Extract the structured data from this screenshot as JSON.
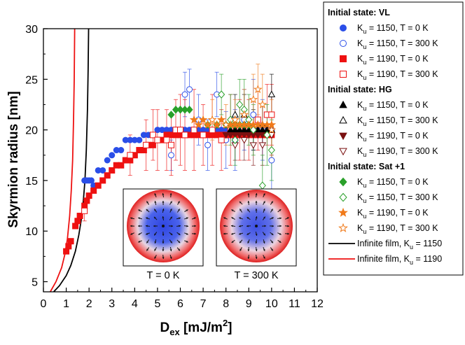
{
  "chart_data": {
    "type": "scatter",
    "xlabel": "D",
    "xlabel_sub": "ex",
    "xlabel_unit": " [mJ/m",
    "xlabel_sup": "2",
    "xlabel_close": "]",
    "ylabel": "Skyrmion radius [nm]",
    "xlim": [
      0,
      12
    ],
    "ylim": [
      4,
      30
    ],
    "xticks": [
      0,
      1,
      2,
      3,
      4,
      5,
      6,
      7,
      8,
      9,
      10,
      11,
      12
    ],
    "yticks": [
      5,
      10,
      15,
      20,
      25,
      30
    ],
    "legend_groups": [
      {
        "heading": "Initial state: VL",
        "entries": [
          0,
          1,
          2,
          3
        ]
      },
      {
        "heading": "Initial state: HG",
        "entries": [
          4,
          5,
          6,
          7
        ]
      },
      {
        "heading": "Initial state: Sat +1",
        "entries": [
          8,
          9,
          10,
          11
        ]
      }
    ],
    "series": [
      {
        "name": "K_u = 1150, T = 0 K",
        "label_main": "K",
        "label_sub": "u",
        "label_rest": " = 1150, T = 0 K",
        "marker": "circle",
        "filled": true,
        "color": "#2a4ee8",
        "x": [
          1.8,
          1.9,
          2.0,
          2.1,
          2.2,
          2.4,
          2.6,
          2.8,
          3.0,
          3.2,
          3.4,
          3.6,
          3.8,
          4.0,
          4.2,
          4.4,
          4.6,
          4.8,
          5.0,
          5.2,
          5.4,
          5.6,
          5.8,
          6.0,
          6.2,
          6.4,
          6.6,
          6.8,
          7.0,
          7.2,
          7.4,
          7.6,
          7.8,
          8.0,
          8.2,
          8.4,
          8.6,
          8.8,
          9.0,
          9.2,
          9.4,
          9.6,
          9.8,
          10.0
        ],
        "y": [
          15,
          15,
          15,
          15,
          14.5,
          16,
          16,
          17,
          17.5,
          18,
          18,
          19,
          19,
          19,
          19,
          19.5,
          19.5,
          19.5,
          20,
          20,
          20,
          20,
          20,
          20,
          20,
          20,
          20,
          20,
          20,
          20,
          20,
          20,
          20,
          20,
          20,
          20,
          20,
          20,
          20,
          20,
          20,
          20,
          20,
          20
        ]
      },
      {
        "name": "K_u = 1150, T = 300 K",
        "label_main": "K",
        "label_sub": "u",
        "label_rest": " = 1150, T = 300 K",
        "marker": "circle",
        "filled": false,
        "color": "#2a4ee8",
        "x": [
          5.6,
          6.2,
          6.4,
          6.8,
          7.2,
          7.6,
          8.0,
          8.4,
          8.8,
          9.2,
          9.6,
          10.0
        ],
        "y": [
          17.5,
          23.5,
          24,
          21,
          18.5,
          23.5,
          19,
          19,
          21,
          21.5,
          20,
          17
        ],
        "err": [
          1.5,
          2.2,
          2.0,
          2.5,
          2.5,
          2.2,
          2.8,
          3.0,
          3.0,
          3.5,
          3.0,
          3.0
        ]
      },
      {
        "name": "K_u = 1190, T = 0 K",
        "label_main": "K",
        "label_sub": "u",
        "label_rest": " = 1190, T = 0 K",
        "marker": "square",
        "filled": true,
        "color": "#ee1111",
        "x": [
          1.0,
          1.1,
          1.2,
          1.4,
          1.5,
          1.6,
          1.8,
          1.9,
          2.0,
          2.2,
          2.4,
          2.6,
          2.8,
          3.0,
          3.2,
          3.4,
          3.6,
          3.8,
          4.0,
          4.2,
          4.4,
          4.6,
          4.8,
          5.0,
          5.2,
          5.4,
          5.6,
          5.8,
          6.0,
          6.2,
          6.4,
          6.6,
          6.8,
          7.0,
          7.2,
          7.4,
          7.6,
          7.8,
          8.0,
          8.2,
          8.4,
          8.6,
          8.8,
          9.0,
          9.2,
          9.4,
          9.6,
          9.8,
          10.0
        ],
        "y": [
          8,
          8.5,
          9,
          10.5,
          11,
          11.5,
          12.5,
          13,
          13.5,
          14,
          14.5,
          15,
          15.5,
          16,
          16.5,
          16.5,
          17,
          17,
          17.5,
          18,
          18,
          18.5,
          18.5,
          19,
          19,
          19.5,
          19.5,
          19.5,
          19.5,
          19.5,
          19.5,
          19.5,
          19.5,
          19.5,
          19.5,
          19.5,
          19.5,
          19.5,
          19.5,
          19.5,
          19.5,
          19.5,
          19.5,
          19.5,
          19.5,
          19.5,
          19.5,
          19.5,
          19.5
        ]
      },
      {
        "name": "K_u = 1190, T = 300 K",
        "label_main": "K",
        "label_sub": "u",
        "label_rest": " = 1190, T = 300 K",
        "marker": "square",
        "filled": false,
        "color": "#ee1111",
        "x": [
          1.8,
          3.8,
          4.5,
          4.8,
          5.0,
          5.4,
          5.6,
          5.8,
          6.0,
          6.2,
          6.6,
          7.0,
          7.4,
          7.8,
          8.2,
          8.6,
          9.0,
          9.4,
          9.8,
          10.0
        ],
        "y": [
          12,
          17.5,
          18.5,
          19.5,
          19,
          19,
          18.5,
          20,
          20,
          19.5,
          20,
          19.5,
          20,
          19,
          20,
          20,
          20,
          21,
          21.5,
          21.5
        ],
        "err": [
          1.0,
          2.0,
          2.5,
          2.5,
          3.0,
          3.0,
          3.0,
          3.0,
          3.5,
          3.5,
          4.0,
          3.0,
          3.5,
          3.0,
          3.5,
          3.0,
          3.0,
          3.0,
          3.0,
          3.0
        ]
      },
      {
        "name": "K_u = 1150, T = 0 K",
        "label_main": "K",
        "label_sub": "u",
        "label_rest": " = 1150, T = 0 K",
        "marker": "triangle-up",
        "filled": true,
        "color": "#000000",
        "x": [
          8.2,
          8.4,
          8.6,
          8.8,
          9.0,
          9.2,
          9.4,
          9.6,
          9.8,
          10.0
        ],
        "y": [
          20,
          20,
          20,
          20,
          20,
          20,
          20,
          20,
          20,
          20
        ]
      },
      {
        "name": "K_u = 1150, T = 300 K",
        "label_main": "K",
        "label_sub": "u",
        "label_rest": " = 1150, T = 300 K",
        "marker": "triangle-up",
        "filled": false,
        "color": "#000000",
        "x": [
          8.4,
          8.8,
          9.2,
          9.6,
          10.0
        ],
        "y": [
          21.5,
          21.5,
          20,
          20.5,
          23.5
        ],
        "err": [
          2.0,
          2.0,
          2.0,
          2.0,
          2.0
        ]
      },
      {
        "name": "K_u = 1190, T = 0 K",
        "label_main": "K",
        "label_sub": "u",
        "label_rest": " = 1190, T = 0 K",
        "marker": "triangle-down",
        "filled": true,
        "color": "#7a1010",
        "x": [
          8.0,
          8.2,
          8.4,
          8.6,
          8.8,
          9.0,
          9.2,
          9.4,
          9.6,
          9.8,
          10.0
        ],
        "y": [
          19.5,
          19.5,
          19.5,
          19.5,
          19.5,
          19.5,
          19.5,
          19.5,
          19.5,
          19.5,
          19.5
        ]
      },
      {
        "name": "K_u = 1190, T = 300 K",
        "label_main": "K",
        "label_sub": "u",
        "label_rest": " = 1190, T = 300 K",
        "marker": "triangle-down",
        "filled": false,
        "color": "#7a1010",
        "x": [
          8.4,
          8.8,
          9.2,
          9.6,
          10.0
        ],
        "y": [
          18.5,
          19,
          18.5,
          18.5,
          19.5
        ],
        "err": [
          1.5,
          2.0,
          2.0,
          2.0,
          2.0
        ]
      },
      {
        "name": "K_u = 1150, T = 0 K",
        "label_main": "K",
        "label_sub": "u",
        "label_rest": " = 1150, T = 0 K",
        "marker": "diamond",
        "filled": true,
        "color": "#2aa02a",
        "x": [
          5.6,
          5.8,
          6.0,
          6.2,
          6.4,
          7.2,
          7.6,
          8.0,
          8.2,
          8.4,
          8.6,
          8.8,
          9.0
        ],
        "y": [
          21.5,
          22,
          22,
          22,
          22,
          20.5,
          20.5,
          20.5,
          20.5,
          20.5,
          20.5,
          20.5,
          20.5
        ]
      },
      {
        "name": "K_u = 1150, T = 300 K",
        "label_main": "K",
        "label_sub": "u",
        "label_rest": " = 1150, T = 300 K",
        "marker": "diamond",
        "filled": false,
        "color": "#2aa02a",
        "x": [
          7.8,
          8.2,
          8.4,
          8.6,
          8.8,
          9.0,
          9.2,
          9.6,
          9.8,
          10.0
        ],
        "y": [
          23.5,
          21,
          19,
          22.5,
          22,
          21,
          20,
          14.5,
          19.5,
          18
        ],
        "err": [
          2.0,
          2.5,
          2.5,
          2.5,
          3.0,
          2.5,
          2.5,
          3.0,
          3.0,
          3.0
        ]
      },
      {
        "name": "K_u = 1190, T = 0 K",
        "label_main": "K",
        "label_sub": "u",
        "label_rest": " = 1190, T = 0 K",
        "marker": "star",
        "filled": true,
        "color": "#f07a1a",
        "x": [
          6.6,
          6.8,
          7.0,
          7.2,
          7.4,
          7.6,
          7.8,
          8.0,
          8.2,
          8.4,
          8.6,
          8.8,
          9.0,
          9.2,
          9.4,
          9.6,
          9.8,
          10.0
        ],
        "y": [
          21,
          20.5,
          21,
          20.5,
          21,
          20.5,
          21,
          20.5,
          20.5,
          20.5,
          20.5,
          20.5,
          20.5,
          20.5,
          20.5,
          20.5,
          20.5,
          20.5
        ]
      },
      {
        "name": "K_u = 1190, T = 300 K",
        "label_main": "K",
        "label_sub": "u",
        "label_rest": " = 1190, T = 300 K",
        "marker": "star",
        "filled": false,
        "color": "#f07a1a",
        "x": [
          7.4,
          8.0,
          8.4,
          8.8,
          9.2,
          9.4,
          9.6,
          10.0
        ],
        "y": [
          21,
          20.5,
          21,
          21.5,
          23,
          24,
          22.5,
          20
        ],
        "err": [
          2.0,
          2.0,
          2.0,
          2.5,
          2.5,
          2.5,
          3.0,
          3.0
        ]
      }
    ],
    "lines": [
      {
        "name": "Infinite film, K_u = 1150",
        "label_main": "Infinite film, K",
        "label_sub": "u",
        "label_rest": " = 1150",
        "color": "#000000",
        "x": [
          0.45,
          0.7,
          1.0,
          1.2,
          1.4,
          1.55,
          1.65,
          1.75,
          1.82,
          1.88,
          1.93,
          1.96,
          1.98
        ],
        "y": [
          4,
          4.6,
          5.6,
          6.6,
          8.0,
          9.6,
          11.0,
          13.0,
          15.0,
          18.0,
          22.0,
          26.0,
          30.0
        ]
      },
      {
        "name": "Infinite film, K_u = 1190",
        "label_main": "Infinite film, K",
        "label_sub": "u",
        "label_rest": " = 1190",
        "color": "#ee1111",
        "x": [
          0.3,
          0.55,
          0.8,
          0.95,
          1.05,
          1.15,
          1.22,
          1.28,
          1.32,
          1.35,
          1.37
        ],
        "y": [
          4,
          5.0,
          6.4,
          7.8,
          9.2,
          11.5,
          14.0,
          17.0,
          21.0,
          25.0,
          30.0
        ]
      }
    ],
    "insets": [
      {
        "label": "T = 0 K"
      },
      {
        "label": "T = 300 K"
      }
    ]
  }
}
